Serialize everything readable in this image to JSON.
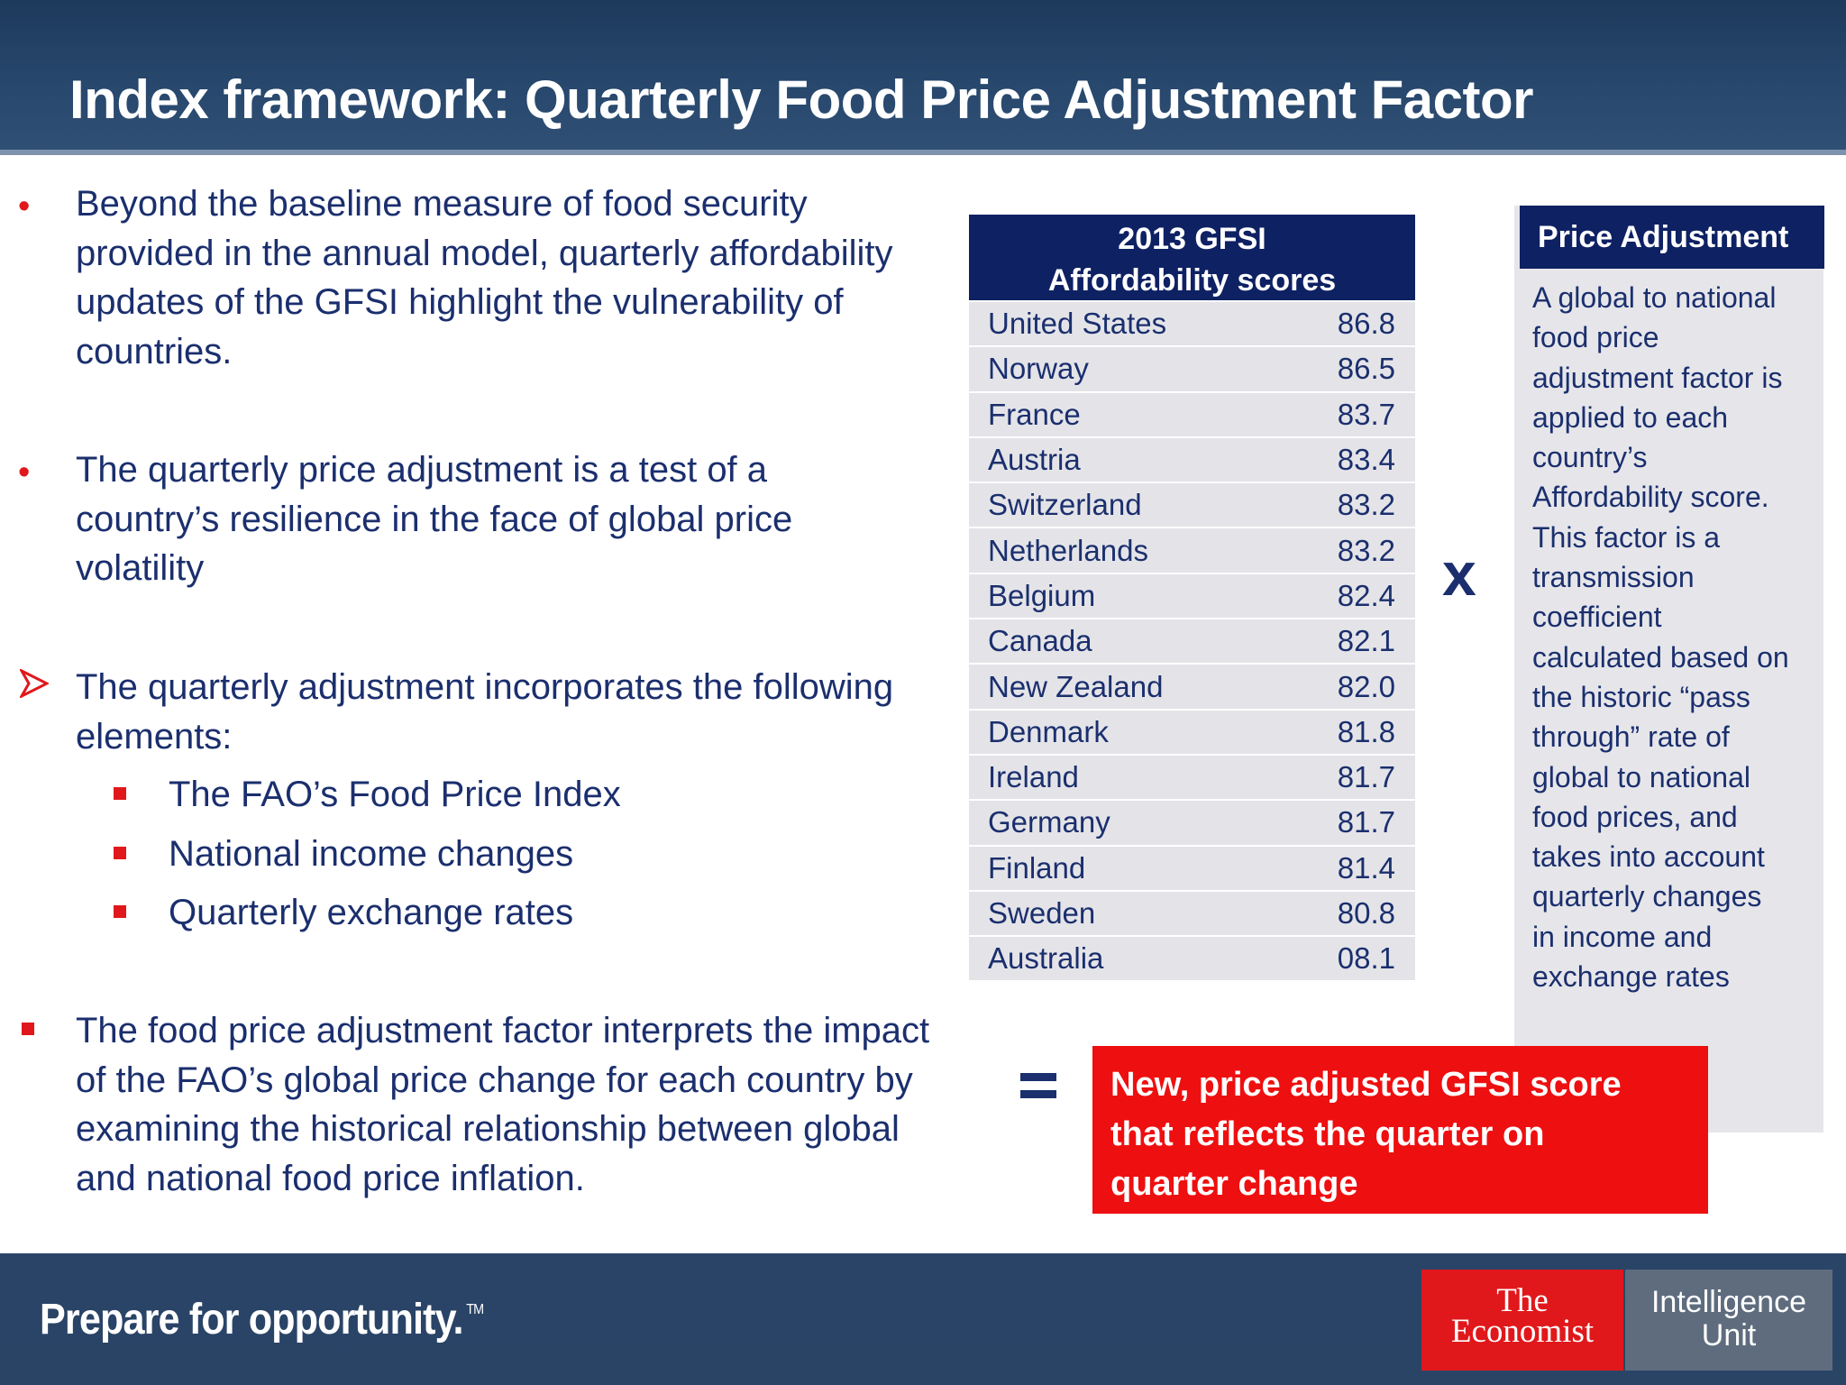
{
  "header": {
    "title": "Index framework: Quarterly Food Price Adjustment Factor"
  },
  "bullets": [
    {
      "marker": "•",
      "text": "Beyond the baseline measure of food security provided in the annual model, quarterly affordability updates of the GFSI highlight the vulnerability of countries."
    },
    {
      "marker": "•",
      "text": "The quarterly price adjustment is a test of a country’s resilience in the face of global price volatility"
    },
    {
      "marker": "➢",
      "text": "The quarterly adjustment incorporates the following elements:",
      "sub_items": [
        "The FAO’s Food Price Index",
        "National income changes",
        "Quarterly exchange rates"
      ]
    },
    {
      "marker": "▪",
      "text": "The food price adjustment factor interprets the impact of the FAO’s global price change for each country by examining the historical relationship between global and national food price inflation."
    }
  ],
  "gfsi_table": {
    "header_line1": "2013 GFSI",
    "header_line2": "Affordability scores",
    "rows": [
      {
        "country": "United States",
        "score": "86.8"
      },
      {
        "country": "Norway",
        "score": "86.5"
      },
      {
        "country": "France",
        "score": "83.7"
      },
      {
        "country": "Austria",
        "score": "83.4"
      },
      {
        "country": "Switzerland",
        "score": "83.2"
      },
      {
        "country": "Netherlands",
        "score": "83.2"
      },
      {
        "country": "Belgium",
        "score": "82.4"
      },
      {
        "country": "Canada",
        "score": "82.1"
      },
      {
        "country": "New Zealand",
        "score": "82.0"
      },
      {
        "country": "Denmark",
        "score": "81.8"
      },
      {
        "country": "Ireland",
        "score": "81.7"
      },
      {
        "country": "Germany",
        "score": "81.7"
      },
      {
        "country": "Finland",
        "score": "81.4"
      },
      {
        "country": "Sweden",
        "score": "80.8"
      },
      {
        "country": "Australia",
        "score": "08.1"
      }
    ]
  },
  "operators": {
    "times": "x"
  },
  "price_adjustment": {
    "title": "Price Adjustment",
    "lines": [
      "A global to national",
      "food price",
      "adjustment factor is",
      "applied to each",
      "country’s",
      "Affordability score.",
      "This factor is a",
      "transmission",
      "coefficient",
      "calculated based on",
      "the historic “pass",
      "through” rate of",
      "global to national",
      "food prices, and",
      "takes into account",
      "quarterly changes",
      "in income and",
      "exchange rates"
    ]
  },
  "result": {
    "lines": [
      "New, price adjusted GFSI score",
      "that reflects the quarter on",
      "quarter change"
    ]
  },
  "footer": {
    "tagline": "Prepare for opportunity.",
    "trademark": "TM",
    "logo_red_line1": "The",
    "logo_red_line2": "Economist",
    "logo_grey_line1": "Intelligence",
    "logo_grey_line2": "Unit"
  },
  "colors": {
    "navy": "#0e2163",
    "text_blue": "#1b2f6e",
    "accent_red": "#e0181b",
    "result_red": "#ee0f10"
  }
}
